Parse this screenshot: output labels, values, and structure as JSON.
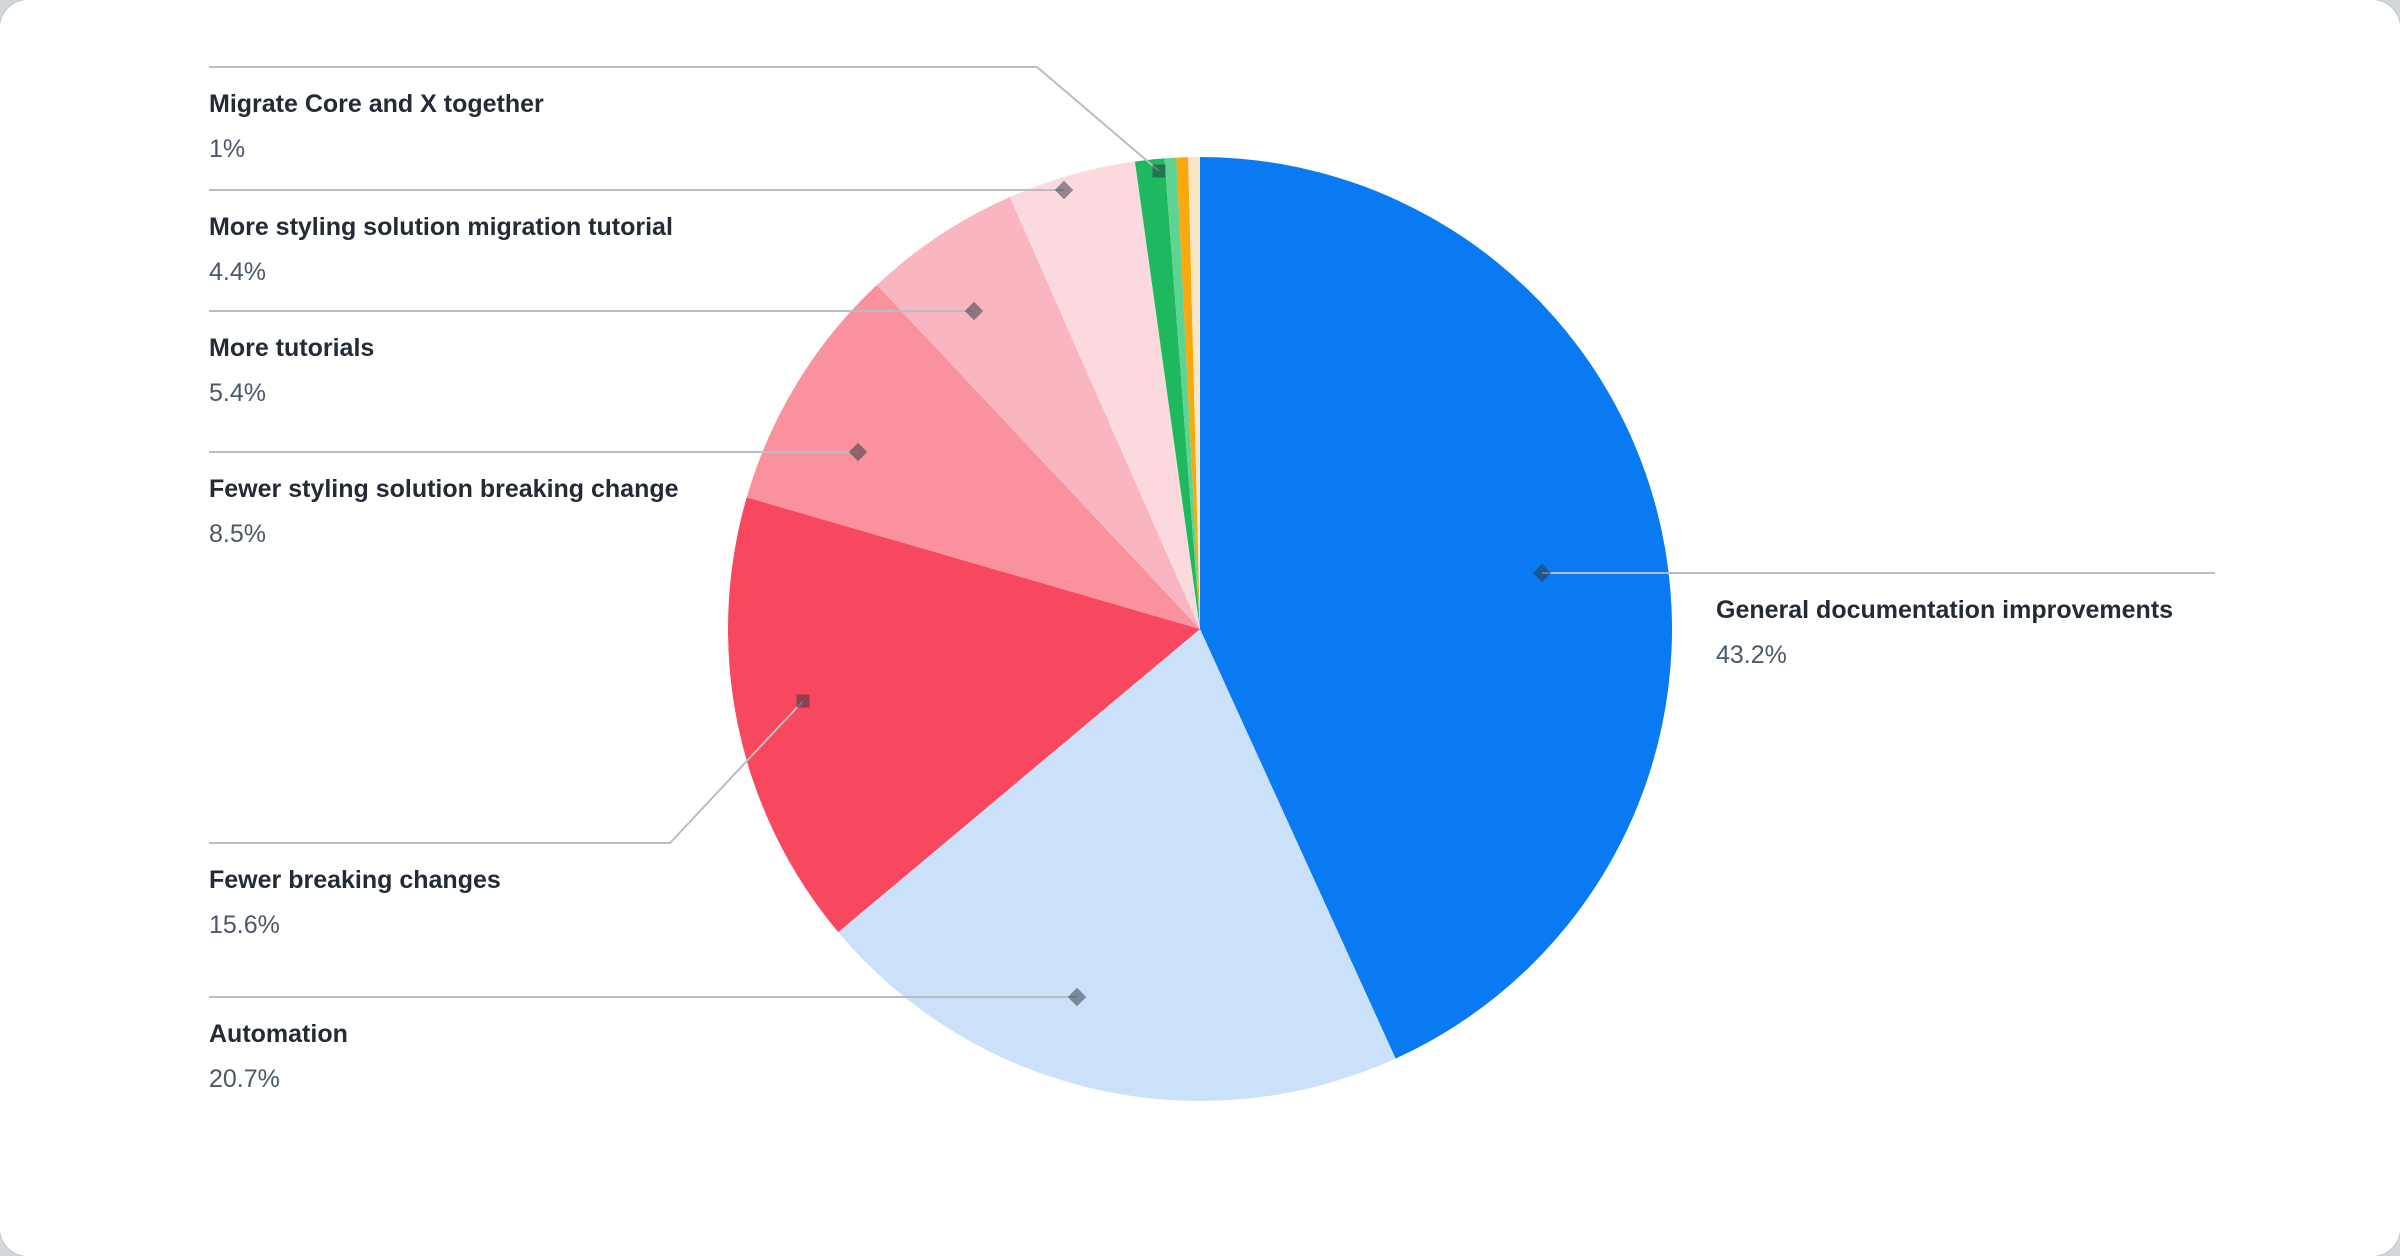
{
  "chart_data": {
    "type": "pie",
    "title": "",
    "start_angle_deg": 0,
    "direction": "clockwise",
    "legend_position": "callout-labels",
    "slices": [
      {
        "label": "General documentation improvements",
        "percent": 43.2,
        "display": "43.2%",
        "color": "#0a7af2",
        "labeled": true
      },
      {
        "label": "Automation",
        "percent": 20.7,
        "display": "20.7%",
        "color": "#cae1f9",
        "labeled": true
      },
      {
        "label": "Fewer breaking changes",
        "percent": 15.6,
        "display": "15.6%",
        "color": "#f8485f",
        "labeled": true
      },
      {
        "label": "Fewer styling solution breaking change",
        "percent": 8.5,
        "display": "8.5%",
        "color": "#f9929e",
        "labeled": true
      },
      {
        "label": "More tutorials",
        "percent": 5.4,
        "display": "5.4%",
        "color": "#fab6c0",
        "labeled": true
      },
      {
        "label": "More styling solution migration tutorial",
        "percent": 4.4,
        "display": "4.4%",
        "color": "#fcd9de",
        "labeled": true
      },
      {
        "label": "Migrate Core and X together",
        "percent": 1.0,
        "display": "1%",
        "color": "#1eb95e",
        "labeled": true
      },
      {
        "label": "",
        "percent": 0.4,
        "display": "",
        "color": "#5fd392",
        "labeled": false
      },
      {
        "label": "",
        "percent": 0.4,
        "display": "",
        "color": "#f9a90e",
        "labeled": false
      },
      {
        "label": "",
        "percent": 0.4,
        "display": "",
        "color": "#fbe7c4",
        "labeled": false
      }
    ]
  },
  "styles": {
    "label_color": "#232b37",
    "percent_color": "#4b5869",
    "line_color": "#b9bdc1",
    "marker_color": "rgba(40,50,62,0.5)",
    "card_background": "#ffffff",
    "page_background": "#d3d7da"
  }
}
